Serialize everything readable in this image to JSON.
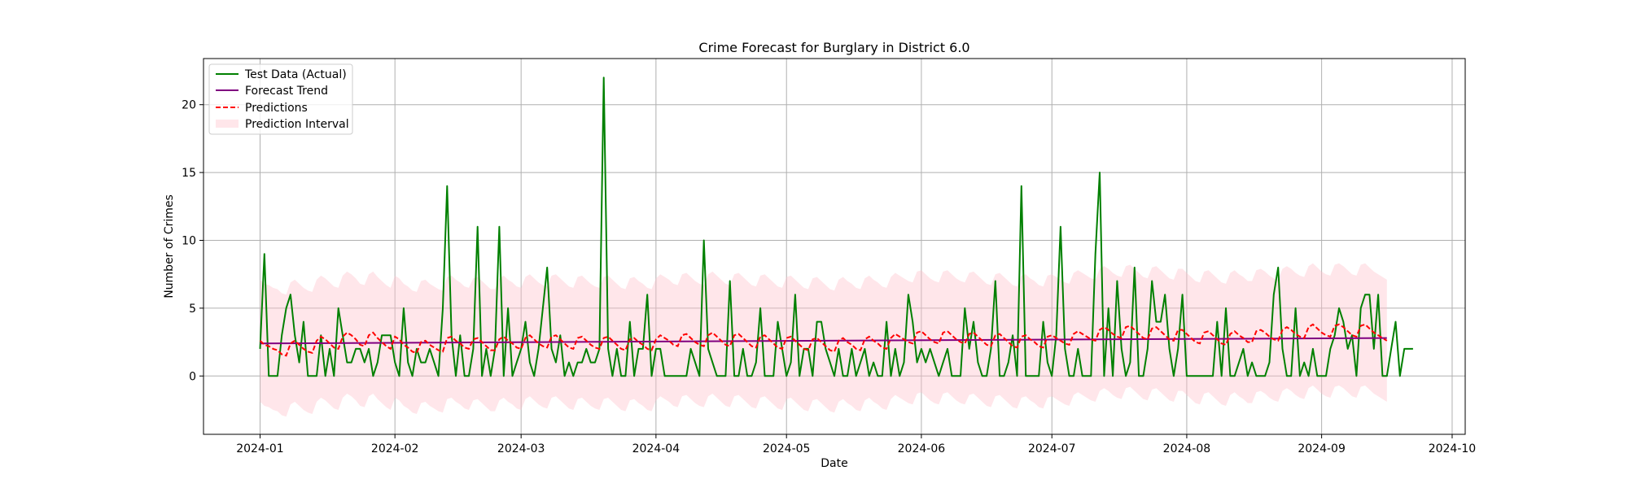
{
  "chart_data": {
    "type": "line",
    "title": "Crime Forecast for Burglary in District 6.0",
    "xlabel": "Date",
    "ylabel": "Number of Crimes",
    "x_ticks": [
      "2024-01",
      "2024-02",
      "2024-03",
      "2024-04",
      "2024-05",
      "2024-06",
      "2024-07",
      "2024-08",
      "2024-09",
      "2024-10"
    ],
    "y_ticks": [
      0,
      5,
      10,
      15,
      20
    ],
    "xlim": [
      "2023-12-19",
      "2024-10-04"
    ],
    "ylim": [
      -4.3,
      23.4
    ],
    "grid": true,
    "legend_position": "top-left",
    "start_date": "2024-01-01",
    "end_date": "2024-09-21",
    "series": [
      {
        "name": "Test Data (Actual)",
        "kind": "line",
        "color": "#008000",
        "values": [
          2,
          9,
          0,
          0,
          0,
          3,
          5,
          6,
          3,
          1,
          4,
          0,
          0,
          0,
          3,
          0,
          2,
          0,
          5,
          3,
          1,
          1,
          2,
          2,
          1,
          2,
          0,
          1,
          3,
          3,
          3,
          1,
          0,
          5,
          1,
          0,
          2,
          1,
          1,
          2,
          1,
          0,
          5,
          14,
          3,
          0,
          3,
          0,
          0,
          2,
          11,
          0,
          2,
          0,
          2,
          11,
          0,
          5,
          0,
          1,
          2,
          4,
          1,
          0,
          2,
          5,
          8,
          2,
          1,
          3,
          0,
          1,
          0,
          1,
          1,
          2,
          1,
          1,
          2,
          22,
          2,
          0,
          2,
          0,
          0,
          4,
          0,
          2,
          2,
          6,
          0,
          2,
          2,
          0,
          0,
          0,
          0,
          0,
          0,
          2,
          1,
          0,
          10,
          2,
          1,
          0,
          0,
          0,
          7,
          0,
          0,
          2,
          0,
          0,
          1,
          5,
          0,
          0,
          0,
          4,
          2,
          0,
          1,
          6,
          0,
          2,
          2,
          0,
          4,
          4,
          2,
          1,
          0,
          2,
          0,
          0,
          2,
          0,
          1,
          2,
          0,
          1,
          0,
          0,
          4,
          0,
          2,
          0,
          1,
          6,
          4,
          1,
          2,
          1,
          2,
          1,
          0,
          1,
          2,
          0,
          0,
          0,
          5,
          2,
          4,
          1,
          0,
          0,
          2,
          7,
          0,
          0,
          1,
          3,
          0,
          14,
          0,
          0,
          0,
          0,
          4,
          1,
          0,
          3,
          11,
          2,
          0,
          0,
          2,
          0,
          0,
          0,
          9,
          15,
          0,
          5,
          0,
          7,
          2,
          0,
          1,
          8,
          0,
          0,
          2,
          7,
          4,
          4,
          6,
          2,
          0,
          2,
          6,
          0,
          0,
          0,
          0,
          0,
          0,
          0,
          4,
          0,
          5,
          0,
          0,
          1,
          2,
          0,
          1,
          0,
          0,
          0,
          1,
          6,
          8,
          2,
          0,
          0,
          5,
          0,
          1,
          0,
          2,
          0,
          0,
          0,
          2,
          3,
          5,
          4,
          2,
          3,
          0,
          5,
          6,
          6,
          2,
          6,
          0,
          0,
          2,
          4,
          0,
          2,
          2,
          2
        ]
      },
      {
        "name": "Forecast Trend",
        "kind": "line",
        "color": "#800080",
        "start": 2.4,
        "end": 2.8
      },
      {
        "name": "Predictions",
        "kind": "dashed-line",
        "color": "#ff0000",
        "values": [
          2.6,
          2.3,
          2.2,
          2.0,
          1.9,
          1.6,
          1.5,
          2.4,
          2.6,
          2.3,
          2.0,
          1.8,
          1.7,
          2.6,
          2.9,
          2.7,
          2.4,
          2.1,
          2.0,
          2.9,
          3.2,
          3.0,
          2.7,
          2.3,
          2.2,
          3.0,
          3.2,
          2.8,
          2.5,
          2.2,
          2.0,
          2.9,
          2.7,
          2.3,
          2.1,
          1.8,
          1.7,
          2.5,
          2.6,
          2.3,
          2.1,
          1.9,
          1.8,
          2.8,
          2.9,
          2.6,
          2.4,
          2.1,
          2.0,
          2.7,
          2.8,
          2.5,
          2.2,
          1.9,
          1.9,
          2.7,
          2.9,
          2.6,
          2.4,
          2.1,
          2.0,
          2.8,
          3.0,
          2.7,
          2.4,
          2.2,
          2.1,
          2.9,
          3.0,
          2.7,
          2.4,
          2.1,
          2.0,
          2.8,
          2.9,
          2.6,
          2.3,
          2.1,
          2.0,
          2.8,
          2.9,
          2.6,
          2.3,
          2.0,
          1.9,
          2.7,
          2.8,
          2.5,
          2.3,
          2.0,
          1.9,
          2.7,
          3.0,
          2.8,
          2.6,
          2.3,
          2.2,
          3.0,
          3.1,
          2.8,
          2.5,
          2.3,
          2.2,
          3.0,
          3.2,
          2.9,
          2.6,
          2.3,
          2.2,
          3.0,
          3.1,
          2.8,
          2.5,
          2.2,
          2.1,
          2.9,
          3.0,
          2.7,
          2.4,
          2.1,
          2.0,
          2.8,
          2.9,
          2.6,
          2.3,
          2.0,
          1.9,
          2.7,
          2.8,
          2.5,
          2.2,
          1.9,
          1.8,
          2.6,
          2.8,
          2.5,
          2.3,
          2.0,
          1.9,
          2.7,
          2.9,
          2.6,
          2.4,
          2.1,
          2.0,
          2.8,
          3.1,
          2.9,
          2.7,
          2.5,
          2.4,
          3.2,
          3.3,
          3.0,
          2.7,
          2.5,
          2.4,
          3.2,
          3.3,
          3.0,
          2.7,
          2.5,
          2.4,
          3.1,
          3.2,
          2.9,
          2.6,
          2.3,
          2.2,
          3.0,
          3.1,
          2.8,
          2.5,
          2.2,
          2.1,
          2.9,
          3.0,
          2.7,
          2.5,
          2.2,
          2.1,
          2.9,
          3.0,
          2.8,
          2.6,
          2.4,
          2.3,
          3.1,
          3.3,
          3.1,
          2.9,
          2.7,
          2.6,
          3.4,
          3.6,
          3.4,
          3.1,
          2.9,
          2.8,
          3.6,
          3.7,
          3.4,
          3.1,
          2.8,
          2.7,
          3.5,
          3.6,
          3.3,
          3.0,
          2.7,
          2.6,
          3.4,
          3.4,
          3.1,
          2.8,
          2.5,
          2.4,
          3.2,
          3.3,
          3.0,
          2.7,
          2.4,
          2.3,
          3.1,
          3.3,
          3.0,
          2.8,
          2.5,
          2.5,
          3.3,
          3.4,
          3.2,
          2.9,
          2.7,
          2.6,
          3.4,
          3.6,
          3.4,
          3.1,
          2.9,
          2.8,
          3.6,
          3.8,
          3.5,
          3.2,
          3.0,
          2.9,
          3.7,
          3.8,
          3.6,
          3.3,
          3.0,
          2.9,
          3.7,
          3.8,
          3.5,
          3.2,
          3.0,
          2.8,
          2.6
        ]
      },
      {
        "name": "Prediction Interval",
        "kind": "band",
        "color": "#ffc0cb",
        "half_width": 4.5
      }
    ]
  }
}
